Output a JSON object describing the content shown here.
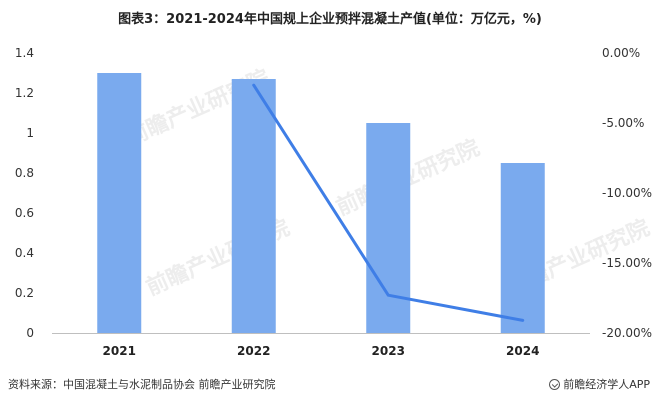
{
  "title": "图表3：2021-2024年中国规上企业预拌混凝土产值(单位：万亿元，%)",
  "source": "资料来源：中国混凝土与水泥制品协会 前瞻产业研究院",
  "brand": "前瞻经济学人APP",
  "watermark": "前瞻产业研究院",
  "colors": {
    "bar": "#7aaaee",
    "line": "#3f7ee6",
    "axis": "#bfbfbf"
  },
  "chart_data": {
    "type": "bar",
    "categories": [
      "2021",
      "2022",
      "2023",
      "2024"
    ],
    "series": [
      {
        "values": [
          1.3,
          1.27,
          1.05,
          0.85
        ],
        "type": "bar",
        "axis": "left"
      },
      {
        "values": [
          null,
          -2.3,
          -17.3,
          -19.1
        ],
        "type": "line",
        "axis": "right"
      }
    ],
    "title": "图表3：2021-2024年中国规上企业预拌混凝土产值(单位：万亿元，%)",
    "ylim_left": [
      0,
      1.4
    ],
    "yticks_left": [
      "0",
      "0.2",
      "0.4",
      "0.6",
      "0.8",
      "1",
      "1.2",
      "1.4"
    ],
    "ylim_right": [
      -20,
      0
    ],
    "yticks_right": [
      "0.00%",
      "-5.00%",
      "-10.00%",
      "-15.00%",
      "-20.00%"
    ],
    "grid": false,
    "legend": "none"
  }
}
